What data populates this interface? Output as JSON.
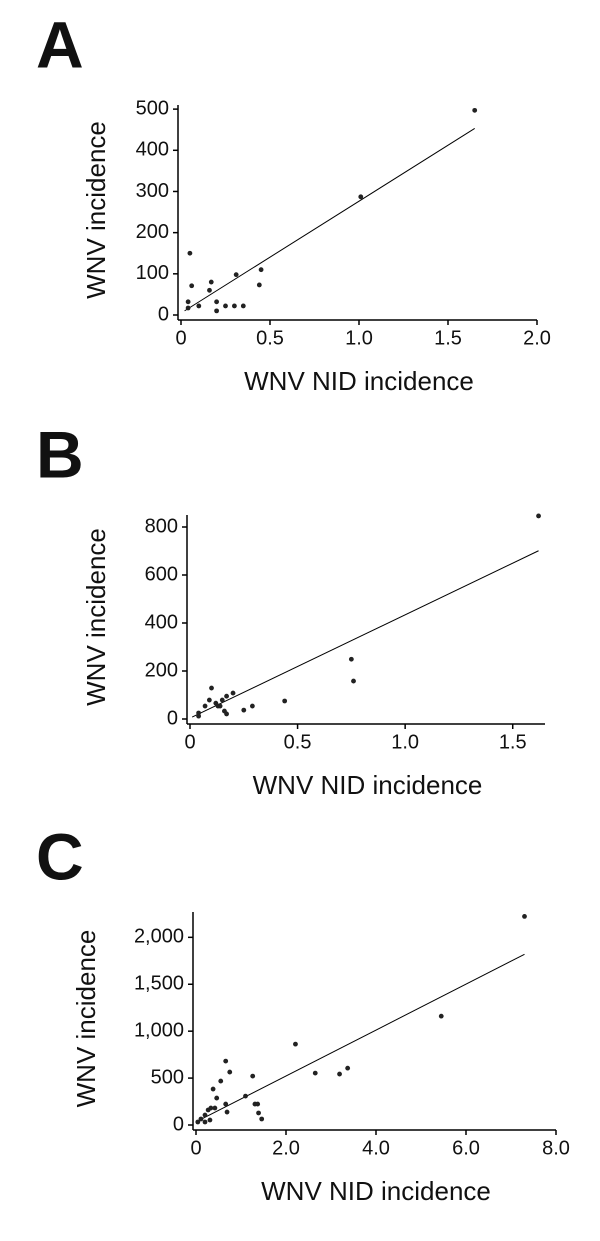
{
  "chart_data": [
    {
      "type": "scatter",
      "panel": "A",
      "x_label": "WNV NID incidence",
      "y_label": "WNV incidence",
      "color": "#222222",
      "x": [
        1.65,
        1.01,
        0.05,
        0.06,
        0.17,
        0.16,
        0.31,
        0.45,
        0.44,
        0.04,
        0.04,
        0.1,
        0.2,
        0.2,
        0.25,
        0.3,
        0.35
      ],
      "values": [
        497,
        287,
        150,
        71,
        80,
        60,
        98,
        110,
        73,
        32,
        17,
        22,
        32,
        10,
        22,
        22,
        22
      ],
      "trend_line": {
        "x": [
          0.02,
          1.65
        ],
        "values": [
          10,
          453
        ]
      },
      "xlim": [
        0,
        2
      ],
      "ylim": [
        0,
        510
      ],
      "xticks": [
        0,
        0.5,
        {
          "value": 1,
          "label": "1.0"
        },
        1.5,
        {
          "value": 2,
          "label": "2.0"
        }
      ],
      "yticks": [
        0,
        100,
        200,
        300,
        400,
        500
      ]
    },
    {
      "type": "scatter",
      "panel": "B",
      "x_label": "WNV NID incidence",
      "y_label": "WNV incidence",
      "color": "#222222",
      "x": [
        1.62,
        0.75,
        0.76,
        0.44,
        0.29,
        0.25,
        0.04,
        0.04,
        0.07,
        0.1,
        0.09,
        0.12,
        0.14,
        0.16,
        0.17,
        0.17,
        0.2,
        0.15,
        0.13
      ],
      "values": [
        846,
        249,
        158,
        75,
        54,
        37,
        25,
        12,
        54,
        129,
        79,
        66,
        54,
        33,
        21,
        95,
        108,
        79,
        54
      ],
      "trend_line": {
        "x": [
          0.01,
          1.62
        ],
        "values": [
          8,
          701
        ]
      },
      "xlim": [
        0,
        1.65
      ],
      "ylim": [
        0,
        850
      ],
      "xticks": [
        0,
        0.5,
        {
          "value": 1,
          "label": "1.0"
        },
        1.5
      ],
      "yticks": [
        0,
        200,
        400,
        600,
        800
      ]
    },
    {
      "type": "scatter",
      "panel": "C",
      "x_label": "WNV NID incidence",
      "y_label": "WNV incidence",
      "color": "#222222",
      "x": [
        7.3,
        5.45,
        3.37,
        3.19,
        2.65,
        2.21,
        0.66,
        0.75,
        0.55,
        0.38,
        0.46,
        1.1,
        1.26,
        1.31,
        1.37,
        1.39,
        1.46,
        0.66,
        0.69,
        0.42,
        0.27,
        0.2,
        0.11,
        0.04,
        0.31,
        0.2,
        0.33
      ],
      "values": [
        2223,
        1160,
        606,
        543,
        553,
        862,
        681,
        564,
        468,
        383,
        287,
        308,
        521,
        223,
        223,
        128,
        64,
        223,
        138,
        181,
        160,
        106,
        64,
        32,
        53,
        32,
        181
      ],
      "trend_line": {
        "x": [
          0.04,
          7.3
        ],
        "values": [
          43,
          1819
        ]
      },
      "xlim": [
        0,
        8
      ],
      "ylim": [
        0,
        2270
      ],
      "xticks": [
        0,
        {
          "value": 2,
          "label": "2.0"
        },
        {
          "value": 4,
          "label": "4.0"
        },
        {
          "value": 6,
          "label": "6.0"
        },
        {
          "value": 8,
          "label": "8.0"
        }
      ],
      "yticks": [
        0,
        500,
        {
          "value": 1000,
          "label": "1,000"
        },
        {
          "value": 1500,
          "label": "1,500"
        },
        {
          "value": 2000,
          "label": "2,000"
        }
      ]
    }
  ]
}
